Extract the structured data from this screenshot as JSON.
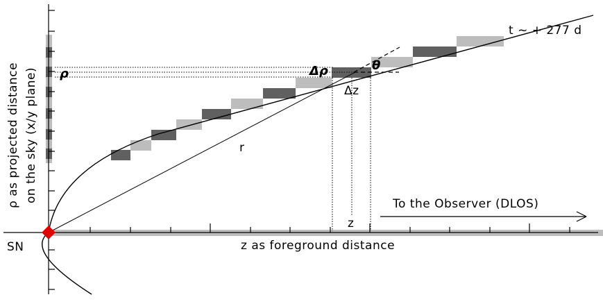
{
  "labels": {
    "time": "t ~ + 277 d",
    "observer": "To the Observer (DLOS)",
    "x_axis": "z as foreground distance",
    "y_axis_line1": "ρ as projected distance",
    "y_axis_line2": "on the sky (x/y plane)",
    "sn": "SN",
    "rho": "ρ",
    "delta_rho": "Δρ",
    "theta": "θ",
    "delta_z": "Δz",
    "r": "r",
    "z": "z"
  },
  "colors": {
    "dark_cell": "#606060",
    "light_cell": "#bdbdbd",
    "sn_marker": "#e00000",
    "line": "#000000"
  }
}
